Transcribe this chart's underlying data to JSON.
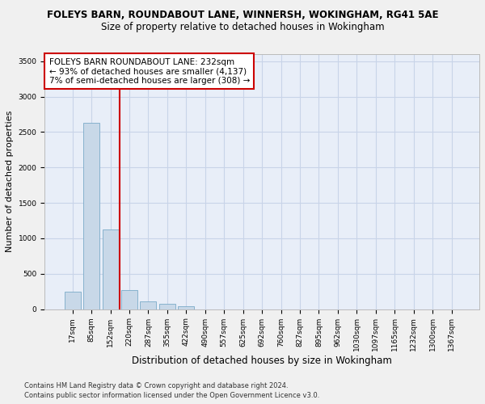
{
  "title1": "FOLEYS BARN, ROUNDABOUT LANE, WINNERSH, WOKINGHAM, RG41 5AE",
  "title2": "Size of property relative to detached houses in Wokingham",
  "xlabel": "Distribution of detached houses by size in Wokingham",
  "ylabel": "Number of detached properties",
  "bar_color": "#c8d8e8",
  "bar_edge_color": "#7aaac8",
  "grid_color": "#c8d4e8",
  "background_color": "#e8eef8",
  "fig_background": "#f0f0f0",
  "annotation_border_color": "#cc0000",
  "vline_color": "#cc0000",
  "footnote1": "Contains HM Land Registry data © Crown copyright and database right 2024.",
  "footnote2": "Contains public sector information licensed under the Open Government Licence v3.0.",
  "annotation_line1": "FOLEYS BARN ROUNDABOUT LANE: 232sqm",
  "annotation_line2": "← 93% of detached houses are smaller (4,137)",
  "annotation_line3": "7% of semi-detached houses are larger (308) →",
  "bin_labels": [
    "17sqm",
    "85sqm",
    "152sqm",
    "220sqm",
    "287sqm",
    "355sqm",
    "422sqm",
    "490sqm",
    "557sqm",
    "625sqm",
    "692sqm",
    "760sqm",
    "827sqm",
    "895sqm",
    "962sqm",
    "1030sqm",
    "1097sqm",
    "1165sqm",
    "1232sqm",
    "1300sqm",
    "1367sqm"
  ],
  "bar_heights": [
    250,
    2630,
    1130,
    270,
    110,
    80,
    40,
    0,
    0,
    0,
    0,
    0,
    0,
    0,
    0,
    0,
    0,
    0,
    0,
    0,
    0
  ],
  "ylim": [
    0,
    3600
  ],
  "yticks": [
    0,
    500,
    1000,
    1500,
    2000,
    2500,
    3000,
    3500
  ],
  "vline_x_index": 3,
  "title1_fontsize": 8.5,
  "title2_fontsize": 8.5,
  "ylabel_fontsize": 8,
  "xlabel_fontsize": 8.5,
  "tick_fontsize": 6.5,
  "footnote_fontsize": 6.0,
  "annot_fontsize": 7.5
}
